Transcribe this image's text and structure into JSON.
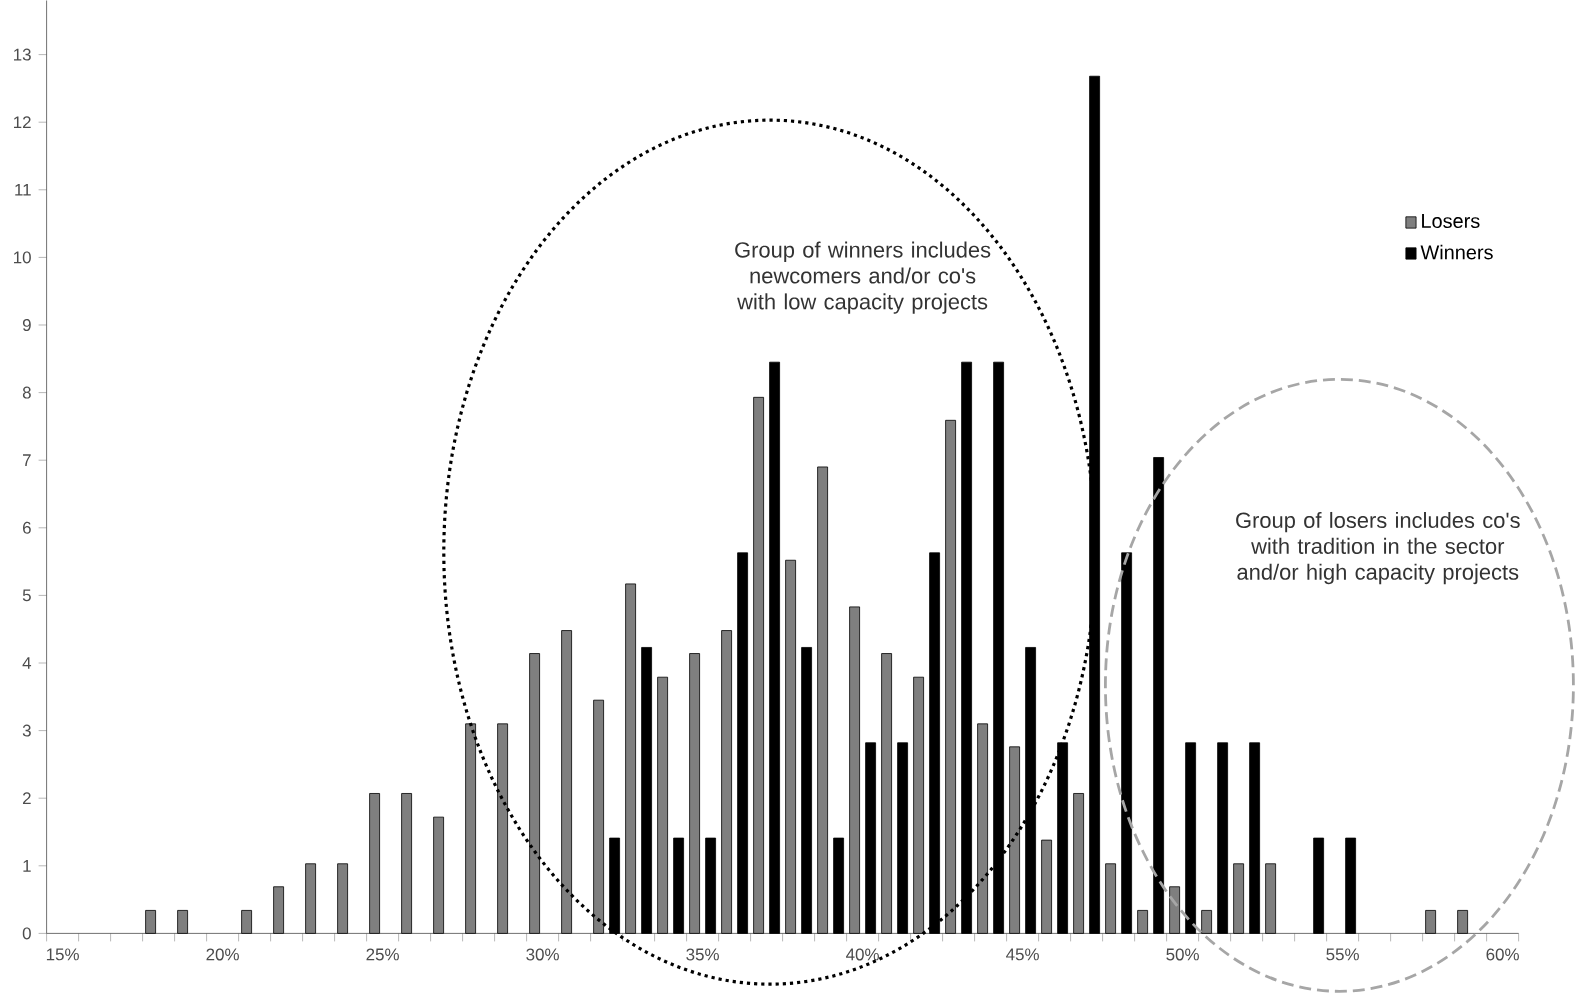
{
  "chart_data": {
    "type": "bar",
    "categories": [
      "15%",
      null,
      null,
      null,
      null,
      "20%",
      null,
      null,
      null,
      null,
      "25%",
      null,
      null,
      null,
      null,
      "30%",
      null,
      null,
      null,
      null,
      "35%",
      null,
      null,
      null,
      null,
      "40%",
      null,
      null,
      null,
      null,
      "45%",
      null,
      null,
      null,
      null,
      "50%",
      null,
      null,
      null,
      null,
      "55%",
      null,
      null,
      null,
      null,
      "60%"
    ],
    "series": [
      {
        "name": "Losers",
        "color": "#7f7f7f",
        "values": [
          null,
          null,
          null,
          0.34,
          0.34,
          null,
          0.34,
          0.69,
          1.03,
          1.03,
          2.07,
          2.07,
          1.72,
          3.1,
          3.1,
          4.14,
          4.48,
          3.45,
          5.17,
          3.79,
          4.14,
          4.48,
          7.93,
          5.52,
          6.9,
          4.83,
          4.14,
          3.79,
          7.59,
          3.1,
          2.76,
          1.38,
          2.07,
          1.03,
          0.34,
          0.69,
          0.34,
          1.03,
          1.03,
          null,
          null,
          null,
          null,
          0.34,
          0.34,
          null
        ]
      },
      {
        "name": "Winners",
        "color": "#000000",
        "values": [
          null,
          null,
          null,
          null,
          null,
          null,
          null,
          null,
          null,
          null,
          null,
          null,
          null,
          null,
          null,
          null,
          null,
          1.41,
          4.23,
          1.41,
          1.41,
          5.63,
          8.45,
          4.23,
          1.41,
          2.82,
          2.82,
          5.63,
          8.45,
          8.45,
          4.23,
          2.82,
          12.68,
          5.63,
          7.04,
          2.82,
          2.82,
          2.82,
          null,
          1.41,
          1.41,
          null,
          null,
          null,
          null,
          null
        ]
      }
    ],
    "ylim": [
      0,
      13.8
    ],
    "yticks": [
      0,
      1,
      2,
      3,
      4,
      5,
      6,
      7,
      8,
      9,
      10,
      11,
      12,
      13
    ],
    "grid": false,
    "legend": "top right",
    "annotations": [
      "Group of winners includes newcomers and/or co's with low capacity projects",
      "Group of losers includes co's with tradition in the sector and/or high capacity projects"
    ]
  }
}
